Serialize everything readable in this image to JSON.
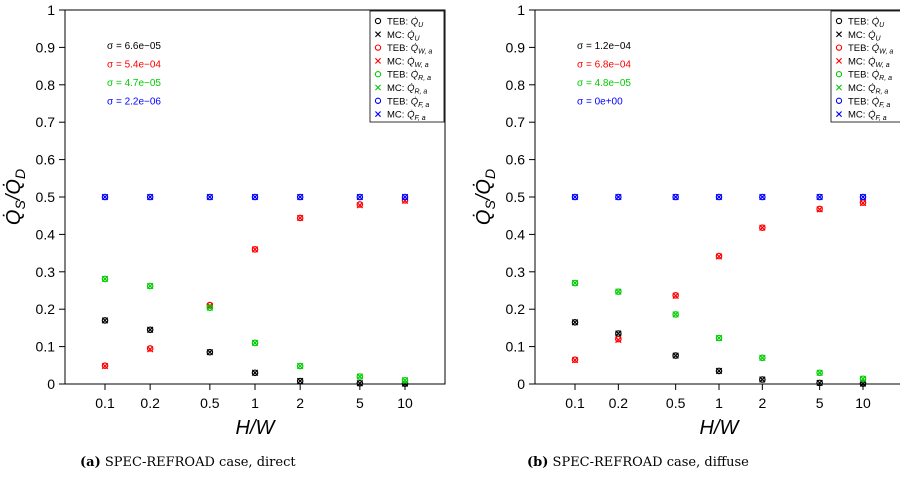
{
  "chart_data": [
    {
      "type": "scatter",
      "caption_tag": "(a)",
      "caption_text": "SPEC-REFROAD case, direct",
      "xlabel": "H/W",
      "ylabel": "Q̇S/Q̇D",
      "x_scale": "log",
      "categories": [
        "0.1",
        "0.2",
        "0.5",
        "1",
        "2",
        "5",
        "10"
      ],
      "x": [
        0.1,
        0.2,
        0.5,
        1,
        2,
        5,
        10
      ],
      "ylim": [
        0,
        1
      ],
      "yticks": [
        "0",
        "0.1",
        "0.2",
        "0.3",
        "0.4",
        "0.5",
        "0.6",
        "0.7",
        "0.8",
        "0.9",
        "1"
      ],
      "grid": false,
      "legend_position": "top-right",
      "sigmas": [
        {
          "text": "σ = 6.6e−05",
          "color": "#000000"
        },
        {
          "text": "σ = 5.4e−04",
          "color": "#ff0000"
        },
        {
          "text": "σ = 4.7e−05",
          "color": "#00cc00"
        },
        {
          "text": "σ = 2.2e−06",
          "color": "#0000ff"
        }
      ],
      "series": [
        {
          "name": "TEB: Q̇U",
          "method": "TEB",
          "quantity": "U",
          "marker": "circle",
          "color": "#000000",
          "values": [
            0.17,
            0.145,
            0.085,
            0.03,
            0.008,
            0.002,
            0.001
          ]
        },
        {
          "name": "MC: Q̇U",
          "method": "MC",
          "quantity": "U",
          "marker": "cross",
          "color": "#000000",
          "values": [
            0.17,
            0.145,
            0.085,
            0.03,
            0.008,
            0.002,
            0.001
          ]
        },
        {
          "name": "TEB: Q̇W, a",
          "method": "TEB",
          "quantity": "W, a",
          "marker": "circle",
          "color": "#ff0000",
          "values": [
            0.049,
            0.095,
            0.211,
            0.36,
            0.444,
            0.48,
            0.491
          ]
        },
        {
          "name": "MC: Q̇W, a",
          "method": "MC",
          "quantity": "W, a",
          "marker": "cross",
          "color": "#ff0000",
          "values": [
            0.048,
            0.093,
            0.209,
            0.36,
            0.444,
            0.478,
            0.49
          ]
        },
        {
          "name": "TEB: Q̇R, a",
          "method": "TEB",
          "quantity": "R, a",
          "marker": "circle",
          "color": "#00cc00",
          "values": [
            0.281,
            0.262,
            0.204,
            0.11,
            0.048,
            0.02,
            0.01
          ]
        },
        {
          "name": "MC: Q̇R, a",
          "method": "MC",
          "quantity": "R, a",
          "marker": "cross",
          "color": "#00cc00",
          "values": [
            0.281,
            0.262,
            0.204,
            0.11,
            0.048,
            0.02,
            0.01
          ]
        },
        {
          "name": "TEB: Q̇F, a",
          "method": "TEB",
          "quantity": "F, a",
          "marker": "circle",
          "color": "#0000ff",
          "values": [
            0.5,
            0.5,
            0.5,
            0.5,
            0.5,
            0.5,
            0.5
          ]
        },
        {
          "name": "MC: Q̇F, a",
          "method": "MC",
          "quantity": "F, a",
          "marker": "cross",
          "color": "#0000ff",
          "values": [
            0.5,
            0.5,
            0.5,
            0.5,
            0.5,
            0.5,
            0.5
          ]
        }
      ]
    },
    {
      "type": "scatter",
      "caption_tag": "(b)",
      "caption_text": "SPEC-REFROAD case, diffuse",
      "xlabel": "H/W",
      "ylabel": "Q̇S/Q̇D",
      "x_scale": "log",
      "categories": [
        "0.1",
        "0.2",
        "0.5",
        "1",
        "2",
        "5",
        "10"
      ],
      "x": [
        0.1,
        0.2,
        0.5,
        1,
        2,
        5,
        10
      ],
      "ylim": [
        0,
        1
      ],
      "yticks": [
        "0",
        "0.1",
        "0.2",
        "0.3",
        "0.4",
        "0.5",
        "0.6",
        "0.7",
        "0.8",
        "0.9",
        "1"
      ],
      "grid": false,
      "legend_position": "top-right",
      "sigmas": [
        {
          "text": "σ = 1.2e−04",
          "color": "#000000"
        },
        {
          "text": "σ = 6.8e−04",
          "color": "#ff0000"
        },
        {
          "text": "σ = 4.8e−05",
          "color": "#00cc00"
        },
        {
          "text": "σ = 0e+00",
          "color": "#0000ff"
        }
      ],
      "series": [
        {
          "name": "TEB: Q̇U",
          "method": "TEB",
          "quantity": "U",
          "marker": "circle",
          "color": "#000000",
          "values": [
            0.165,
            0.135,
            0.076,
            0.035,
            0.012,
            0.003,
            0.001
          ]
        },
        {
          "name": "MC: Q̇U",
          "method": "MC",
          "quantity": "U",
          "marker": "cross",
          "color": "#000000",
          "values": [
            0.165,
            0.135,
            0.076,
            0.035,
            0.012,
            0.003,
            0.001
          ]
        },
        {
          "name": "TEB: Q̇W, a",
          "method": "TEB",
          "quantity": "W, a",
          "marker": "circle",
          "color": "#ff0000",
          "values": [
            0.065,
            0.12,
            0.237,
            0.342,
            0.418,
            0.468,
            0.485
          ]
        },
        {
          "name": "MC: Q̇W, a",
          "method": "MC",
          "quantity": "W, a",
          "marker": "cross",
          "color": "#ff0000",
          "values": [
            0.064,
            0.118,
            0.236,
            0.341,
            0.418,
            0.467,
            0.484
          ]
        },
        {
          "name": "TEB: Q̇R, a",
          "method": "TEB",
          "quantity": "R, a",
          "marker": "circle",
          "color": "#00cc00",
          "values": [
            0.27,
            0.247,
            0.186,
            0.123,
            0.07,
            0.03,
            0.014
          ]
        },
        {
          "name": "MC: Q̇R, a",
          "method": "MC",
          "quantity": "R, a",
          "marker": "cross",
          "color": "#00cc00",
          "values": [
            0.27,
            0.247,
            0.186,
            0.123,
            0.07,
            0.03,
            0.014
          ]
        },
        {
          "name": "TEB: Q̇F, a",
          "method": "TEB",
          "quantity": "F, a",
          "marker": "circle",
          "color": "#0000ff",
          "values": [
            0.5,
            0.5,
            0.5,
            0.5,
            0.5,
            0.5,
            0.5
          ]
        },
        {
          "name": "MC: Q̇F, a",
          "method": "MC",
          "quantity": "F, a",
          "marker": "cross",
          "color": "#0000ff",
          "values": [
            0.5,
            0.5,
            0.5,
            0.5,
            0.5,
            0.5,
            0.5
          ]
        }
      ]
    }
  ]
}
